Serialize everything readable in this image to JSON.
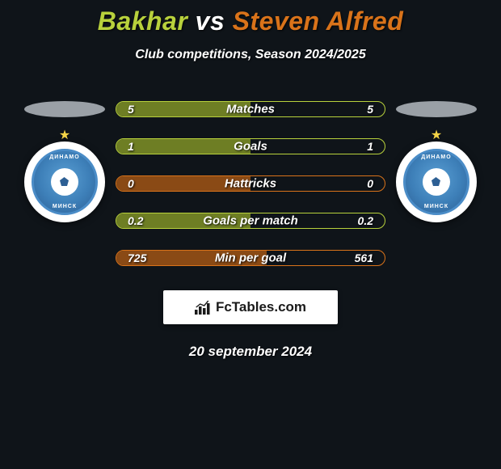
{
  "colors": {
    "background": "#0f1419",
    "player1_accent": "#b8d13c",
    "player2_accent": "#d9731a",
    "player1_fill": "#6e7e24",
    "player2_fill": "#8a4a15",
    "silhouette": "#9aa0a6",
    "crest_bg": "#ffffff",
    "crest_blue": "#3d7fb8",
    "brand_bg": "#ffffff",
    "brand_text": "#1a1a1a",
    "text": "#ffffff"
  },
  "header": {
    "player1_name": "Bakhar",
    "vs_text": " vs ",
    "player2_name": "Steven Alfred",
    "subtitle": "Club competitions, Season 2024/2025"
  },
  "title_fontsize": 32,
  "subtitle_fontsize": 16,
  "stat_label_fontsize": 15,
  "stat_value_fontsize": 14,
  "stats": [
    {
      "label": "Matches",
      "left_value": "5",
      "right_value": "5",
      "fill_pct": 50,
      "border_color": "#b8d13c",
      "fill_color": "#6e7e24"
    },
    {
      "label": "Goals",
      "left_value": "1",
      "right_value": "1",
      "fill_pct": 50,
      "border_color": "#b8d13c",
      "fill_color": "#6e7e24"
    },
    {
      "label": "Hattricks",
      "left_value": "0",
      "right_value": "0",
      "fill_pct": 50,
      "border_color": "#d9731a",
      "fill_color": "#8a4a15"
    },
    {
      "label": "Goals per match",
      "left_value": "0.2",
      "right_value": "0.2",
      "fill_pct": 50,
      "border_color": "#b8d13c",
      "fill_color": "#6e7e24"
    },
    {
      "label": "Min per goal",
      "left_value": "725",
      "right_value": "561",
      "fill_pct": 56,
      "border_color": "#d9731a",
      "fill_color": "#8a4a15"
    }
  ],
  "crest": {
    "top_text": "ДИНАМО",
    "bottom_text": "МИНСК"
  },
  "branding": {
    "text": "FcTables.com"
  },
  "date": "20 september 2024"
}
